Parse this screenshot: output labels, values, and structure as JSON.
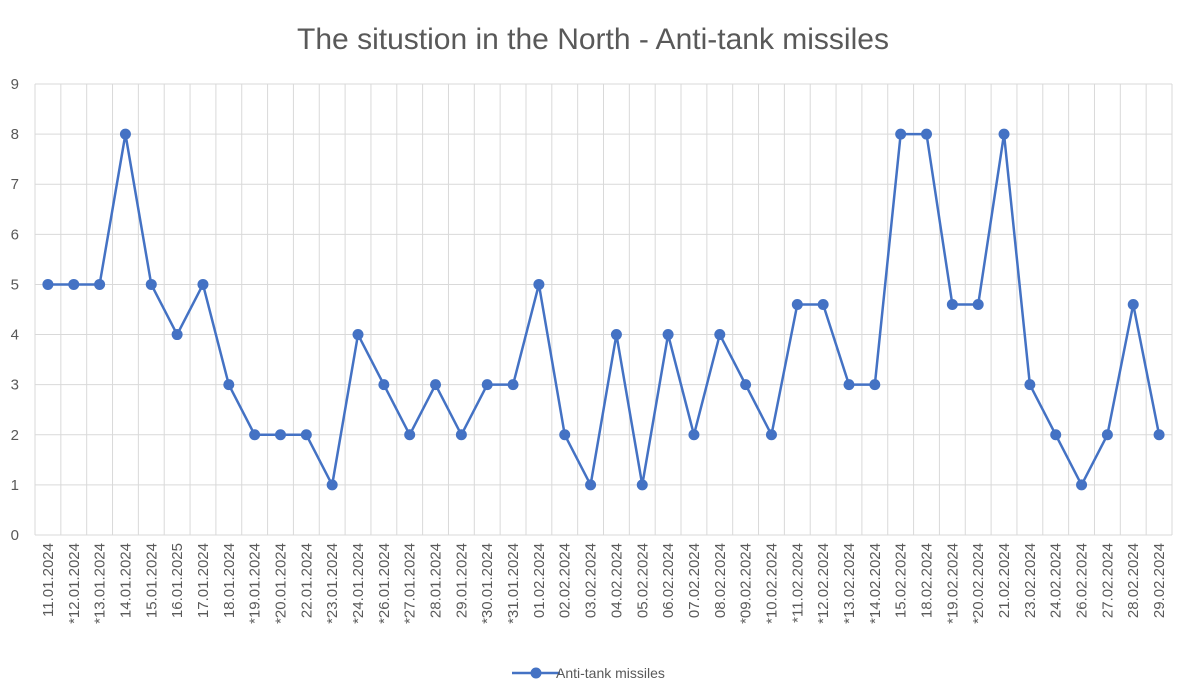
{
  "chart_data": {
    "type": "line",
    "title": "The situstion in the North - Anti-tank missiles",
    "xlabel": "",
    "ylabel": "",
    "ylim": [
      0,
      9
    ],
    "yticks": [
      0,
      1,
      2,
      3,
      4,
      5,
      6,
      7,
      8,
      9
    ],
    "grid": true,
    "legend_position": "bottom",
    "categories": [
      "11.01.2024",
      "*12.01.2024",
      "*13.01.2024",
      "14.01.2024",
      "15.01.2024",
      "16.01.2025",
      "17.01.2024",
      "18.01.2024",
      "*19.01.2024",
      "*20.01.2024",
      "22.01.2024",
      "*23.01.2024",
      "*24.01.2024",
      "*26.01.2024",
      "*27.01.2024",
      "28.01.2024",
      "29.01.2024",
      "*30.01.2024",
      "*31.01.2024",
      "01.02.2024",
      "02.02.2024",
      "03.02.2024",
      "04.02.2024",
      "05.02.2024",
      "06.02.2024",
      "07.02.2024",
      "08.02.2024",
      "*09.02.2024",
      "*10.02.2024",
      "*11.02.2024",
      "*12.02.2024",
      "*13.02.2024",
      "*14.02.2024",
      "15.02.2024",
      "18.02.2024",
      "*19.02.2024",
      "*20.02.2024",
      "21.02.2024",
      "23.02.2024",
      "24.02.2024",
      "26.02.2024",
      "27.02.2024",
      "28.02.2024",
      "29.02.2024"
    ],
    "series": [
      {
        "name": "Anti-tank missiles",
        "color": "#4472c4",
        "values": [
          5,
          5,
          5,
          8,
          5,
          4,
          5,
          3,
          2,
          2,
          2,
          1,
          4,
          3,
          2,
          3,
          2,
          3,
          3,
          5,
          2,
          1,
          4,
          1,
          4,
          2,
          4,
          3,
          2,
          4.6,
          4.6,
          3,
          3,
          8,
          8,
          4.6,
          4.6,
          8,
          3,
          2,
          1,
          2,
          4.6,
          2
        ]
      }
    ]
  }
}
